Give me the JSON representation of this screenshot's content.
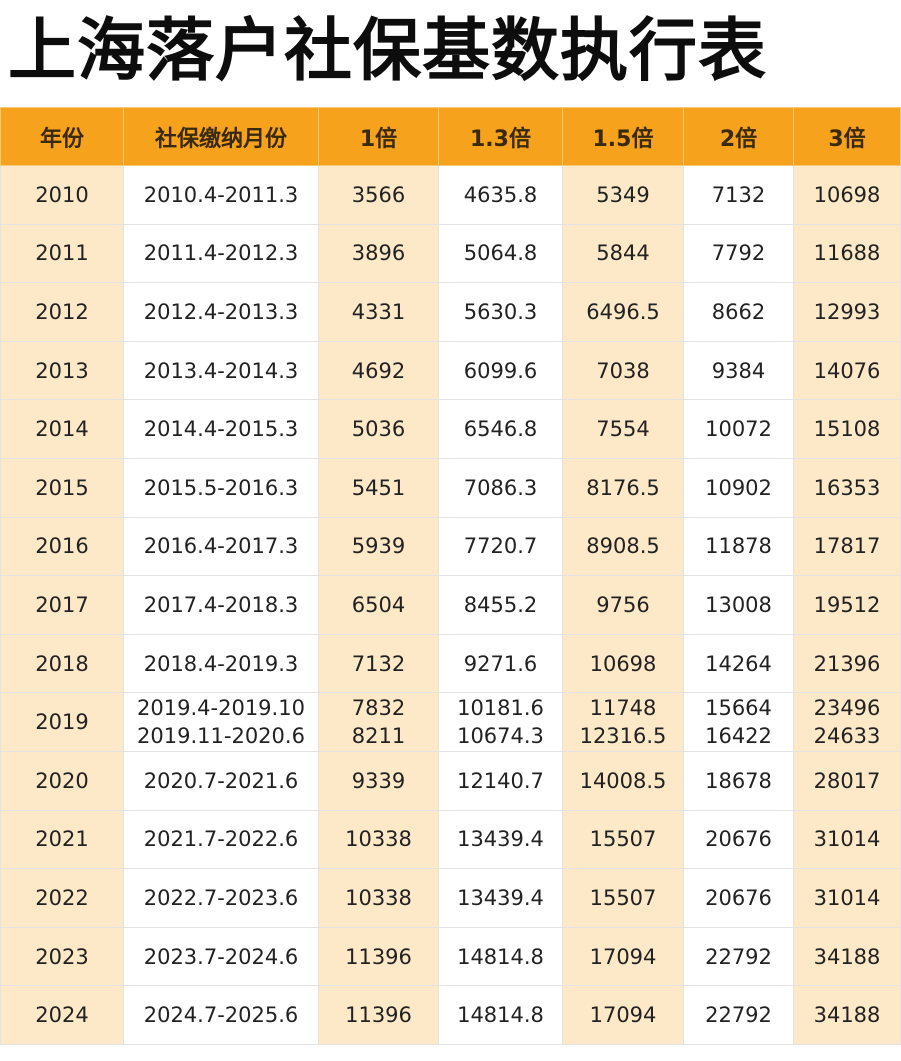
{
  "title": "上海落户社保基数执行表",
  "table": {
    "headers": [
      "年份",
      "社保缴纳月份",
      "1倍",
      "1.3倍",
      "1.5倍",
      "2倍",
      "3倍"
    ],
    "rows": [
      {
        "year": "2010",
        "cells": [
          [
            "2010.4-2011.3"
          ],
          [
            "3566"
          ],
          [
            "4635.8"
          ],
          [
            "5349"
          ],
          [
            "7132"
          ],
          [
            "10698"
          ]
        ]
      },
      {
        "year": "2011",
        "cells": [
          [
            "2011.4-2012.3"
          ],
          [
            "3896"
          ],
          [
            "5064.8"
          ],
          [
            "5844"
          ],
          [
            "7792"
          ],
          [
            "11688"
          ]
        ]
      },
      {
        "year": "2012",
        "cells": [
          [
            "2012.4-2013.3"
          ],
          [
            "4331"
          ],
          [
            "5630.3"
          ],
          [
            "6496.5"
          ],
          [
            "8662"
          ],
          [
            "12993"
          ]
        ]
      },
      {
        "year": "2013",
        "cells": [
          [
            "2013.4-2014.3"
          ],
          [
            "4692"
          ],
          [
            "6099.6"
          ],
          [
            "7038"
          ],
          [
            "9384"
          ],
          [
            "14076"
          ]
        ]
      },
      {
        "year": "2014",
        "cells": [
          [
            "2014.4-2015.3"
          ],
          [
            "5036"
          ],
          [
            "6546.8"
          ],
          [
            "7554"
          ],
          [
            "10072"
          ],
          [
            "15108"
          ]
        ]
      },
      {
        "year": "2015",
        "cells": [
          [
            "2015.5-2016.3"
          ],
          [
            "5451"
          ],
          [
            "7086.3"
          ],
          [
            "8176.5"
          ],
          [
            "10902"
          ],
          [
            "16353"
          ]
        ]
      },
      {
        "year": "2016",
        "cells": [
          [
            "2016.4-2017.3"
          ],
          [
            "5939"
          ],
          [
            "7720.7"
          ],
          [
            "8908.5"
          ],
          [
            "11878"
          ],
          [
            "17817"
          ]
        ]
      },
      {
        "year": "2017",
        "cells": [
          [
            "2017.4-2018.3"
          ],
          [
            "6504"
          ],
          [
            "8455.2"
          ],
          [
            "9756"
          ],
          [
            "13008"
          ],
          [
            "19512"
          ]
        ]
      },
      {
        "year": "2018",
        "cells": [
          [
            "2018.4-2019.3"
          ],
          [
            "7132"
          ],
          [
            "9271.6"
          ],
          [
            "10698"
          ],
          [
            "14264"
          ],
          [
            "21396"
          ]
        ]
      },
      {
        "year": "2019",
        "cells": [
          [
            "2019.4-2019.10",
            "2019.11-2020.6"
          ],
          [
            "7832",
            "8211"
          ],
          [
            "10181.6",
            "10674.3"
          ],
          [
            "11748",
            "12316.5"
          ],
          [
            "15664",
            "16422"
          ],
          [
            "23496",
            "24633"
          ]
        ]
      },
      {
        "year": "2020",
        "cells": [
          [
            "2020.7-2021.6"
          ],
          [
            "9339"
          ],
          [
            "12140.7"
          ],
          [
            "14008.5"
          ],
          [
            "18678"
          ],
          [
            "28017"
          ]
        ]
      },
      {
        "year": "2021",
        "cells": [
          [
            "2021.7-2022.6"
          ],
          [
            "10338"
          ],
          [
            "13439.4"
          ],
          [
            "15507"
          ],
          [
            "20676"
          ],
          [
            "31014"
          ]
        ]
      },
      {
        "year": "2022",
        "cells": [
          [
            "2022.7-2023.6"
          ],
          [
            "10338"
          ],
          [
            "13439.4"
          ],
          [
            "15507"
          ],
          [
            "20676"
          ],
          [
            "31014"
          ]
        ]
      },
      {
        "year": "2023",
        "cells": [
          [
            "2023.7-2024.6"
          ],
          [
            "11396"
          ],
          [
            "14814.8"
          ],
          [
            "17094"
          ],
          [
            "22792"
          ],
          [
            "34188"
          ]
        ]
      },
      {
        "year": "2024",
        "cells": [
          [
            "2024.7-2025.6"
          ],
          [
            "11396"
          ],
          [
            "14814.8"
          ],
          [
            "17094"
          ],
          [
            "22792"
          ],
          [
            "34188"
          ]
        ]
      }
    ]
  },
  "colors": {
    "header_bg": "#f6a21c",
    "shaded_column_bg": "#fde8c8",
    "plain_column_bg": "#ffffff"
  }
}
